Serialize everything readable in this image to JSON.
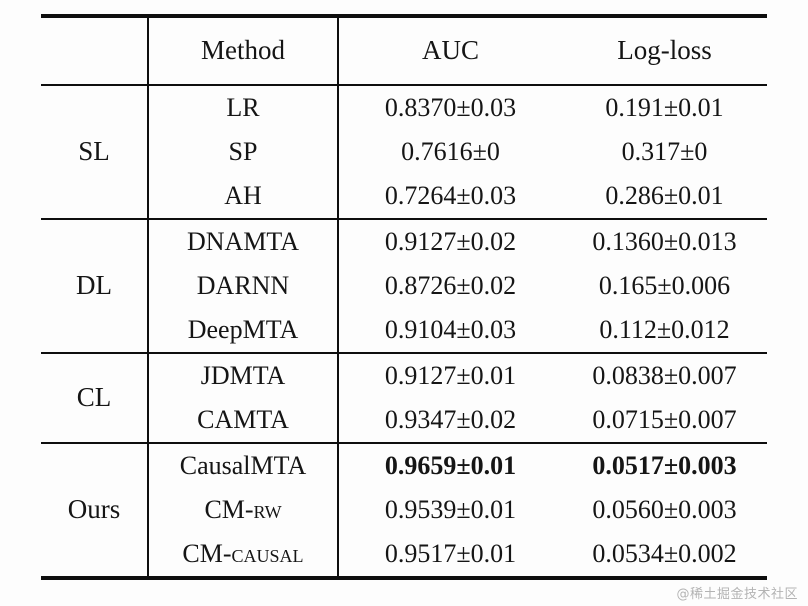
{
  "table": {
    "headers": [
      "",
      "Method",
      "AUC",
      "Log-loss"
    ],
    "groups": [
      {
        "name": "SL",
        "rows": [
          {
            "method": "LR",
            "auc": "0.8370±0.03",
            "logloss": "0.191±0.01"
          },
          {
            "method": "SP",
            "auc": "0.7616±0",
            "logloss": "0.317±0"
          },
          {
            "method": "AH",
            "auc": "0.7264±0.03",
            "logloss": "0.286±0.01"
          }
        ]
      },
      {
        "name": "DL",
        "rows": [
          {
            "method": "DNAMTA",
            "auc": "0.9127±0.02",
            "logloss": "0.1360±0.013"
          },
          {
            "method": "DARNN",
            "auc": "0.8726±0.02",
            "logloss": "0.165±0.006"
          },
          {
            "method": "DeepMTA",
            "auc": "0.9104±0.03",
            "logloss": "0.112±0.012"
          }
        ]
      },
      {
        "name": "CL",
        "rows": [
          {
            "method": "JDMTA",
            "auc": "0.9127±0.01",
            "logloss": "0.0838±0.007"
          },
          {
            "method": "CAMTA",
            "auc": "0.9347±0.02",
            "logloss": "0.0715±0.007"
          }
        ]
      },
      {
        "name": "Ours",
        "rows": [
          {
            "method": "CausalMTA",
            "auc": "0.9659±0.01",
            "logloss": "0.0517±0.003",
            "highlight": true
          },
          {
            "method": "CM-rw",
            "auc": "0.9539±0.01",
            "logloss": "0.0560±0.003"
          },
          {
            "method": "CM-causal",
            "auc": "0.9517±0.01",
            "logloss": "0.0534±0.002"
          }
        ]
      }
    ]
  },
  "watermark": {
    "text": "@稀土掘金技术社区"
  }
}
